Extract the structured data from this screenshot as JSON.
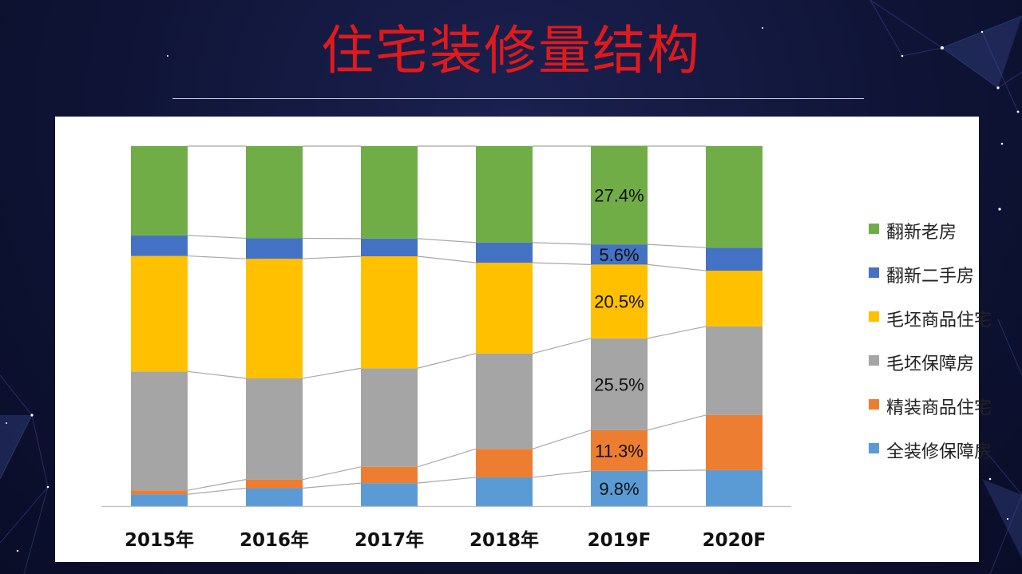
{
  "slide": {
    "title": "住宅装修量结构"
  },
  "chart_data": {
    "type": "bar",
    "stacked": true,
    "percent_stacked": true,
    "ylim": [
      0,
      100
    ],
    "categories": [
      "2015年",
      "2016年",
      "2017年",
      "2018年",
      "2019F",
      "2020F"
    ],
    "series": [
      {
        "name": "全装修保障房",
        "color": "#5b9bd5",
        "values": [
          3.3,
          5.0,
          6.4,
          8.0,
          9.8,
          10.0
        ]
      },
      {
        "name": "精装商品住宅",
        "color": "#ed7d31",
        "values": [
          1.1,
          2.4,
          4.5,
          7.9,
          11.3,
          15.3
        ]
      },
      {
        "name": "毛坯保障房",
        "color": "#a5a5a5",
        "values": [
          33.0,
          28.1,
          27.4,
          26.5,
          25.5,
          24.6
        ]
      },
      {
        "name": "毛坯商品住宅",
        "color": "#ffc000",
        "values": [
          32.1,
          33.2,
          31.1,
          25.2,
          20.5,
          15.5
        ]
      },
      {
        "name": "翻新二手房",
        "color": "#4472c4",
        "values": [
          5.7,
          5.7,
          4.9,
          5.6,
          5.6,
          6.4
        ]
      },
      {
        "name": "翻新老房",
        "color": "#70ad47",
        "values": [
          24.8,
          25.6,
          25.7,
          26.8,
          27.4,
          28.2
        ]
      }
    ],
    "data_labels": [
      {
        "category": "2019F",
        "series": "全装修保障房",
        "text": "9.8%"
      },
      {
        "category": "2019F",
        "series": "精装商品住宅",
        "text": "11.3%"
      },
      {
        "category": "2019F",
        "series": "毛坯保障房",
        "text": "25.5%"
      },
      {
        "category": "2019F",
        "series": "毛坯商品住宅",
        "text": "20.5%"
      },
      {
        "category": "2019F",
        "series": "翻新二手房",
        "text": "5.6%"
      },
      {
        "category": "2019F",
        "series": "翻新老房",
        "text": "27.4%"
      }
    ],
    "series_lines": true,
    "legend_position": "right",
    "legend_order": [
      "翻新老房",
      "翻新二手房",
      "毛坯商品住宅",
      "毛坯保障房",
      "精装商品住宅",
      "全装修保障房"
    ]
  }
}
